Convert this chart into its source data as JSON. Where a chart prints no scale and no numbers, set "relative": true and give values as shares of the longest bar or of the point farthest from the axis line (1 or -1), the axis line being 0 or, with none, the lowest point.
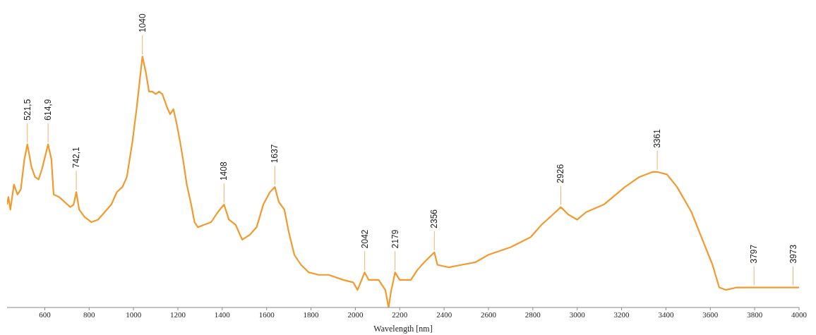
{
  "chart_data": {
    "type": "line",
    "relative": true,
    "xlabel": "Wavelength [nm]",
    "xlim": [
      430,
      4000
    ],
    "xticks": [
      600,
      800,
      1000,
      1200,
      1400,
      1600,
      1800,
      2000,
      2200,
      2400,
      2600,
      2800,
      3000,
      3200,
      3400,
      3600,
      3800,
      4000
    ],
    "grid": false,
    "marker": "none",
    "line_style": "solid",
    "series": [
      {
        "color": "#f39a2e",
        "x": [
          430,
          436,
          445,
          461,
          477,
          492,
          508,
          521.5,
          540,
          556,
          572,
          587,
          614.9,
          630,
          640,
          665,
          690,
          715,
          730,
          742.1,
          755,
          780,
          810,
          840,
          870,
          900,
          925,
          950,
          970,
          995,
          1015,
          1040,
          1055,
          1070,
          1085,
          1100,
          1115,
          1130,
          1150,
          1165,
          1180,
          1195,
          1210,
          1225,
          1240,
          1260,
          1275,
          1290,
          1320,
          1350,
          1380,
          1408,
          1430,
          1460,
          1490,
          1525,
          1555,
          1585,
          1615,
          1637,
          1655,
          1680,
          1700,
          1725,
          1755,
          1790,
          1835,
          1880,
          1945,
          1990,
          2010,
          2042,
          2060,
          2105,
          2135,
          2150,
          2160,
          2179,
          2200,
          2250,
          2280,
          2310,
          2356,
          2370,
          2420,
          2480,
          2540,
          2600,
          2700,
          2790,
          2840,
          2890,
          2926,
          2960,
          3000,
          3040,
          3120,
          3215,
          3280,
          3340,
          3361,
          3405,
          3450,
          3515,
          3560,
          3610,
          3640,
          3670,
          3720,
          3797,
          3875,
          3973,
          4000
        ],
        "values": [
          0.41,
          0.44,
          0.39,
          0.49,
          0.45,
          0.47,
          0.59,
          0.65,
          0.56,
          0.52,
          0.51,
          0.55,
          0.65,
          0.59,
          0.45,
          0.44,
          0.42,
          0.4,
          0.41,
          0.46,
          0.39,
          0.36,
          0.34,
          0.35,
          0.38,
          0.41,
          0.46,
          0.48,
          0.52,
          0.66,
          0.8,
          1,
          0.94,
          0.86,
          0.86,
          0.85,
          0.86,
          0.85,
          0.8,
          0.77,
          0.79,
          0.73,
          0.66,
          0.58,
          0.49,
          0.41,
          0.34,
          0.32,
          0.33,
          0.34,
          0.38,
          0.41,
          0.35,
          0.33,
          0.27,
          0.29,
          0.32,
          0.41,
          0.46,
          0.48,
          0.42,
          0.39,
          0.3,
          0.21,
          0.17,
          0.14,
          0.13,
          0.13,
          0.11,
          0.1,
          0.07,
          0.14,
          0.11,
          0.11,
          0.07,
          0,
          0.06,
          0.14,
          0.11,
          0.11,
          0.15,
          0.18,
          0.22,
          0.17,
          0.16,
          0.17,
          0.18,
          0.21,
          0.24,
          0.28,
          0.33,
          0.37,
          0.4,
          0.37,
          0.35,
          0.38,
          0.41,
          0.48,
          0.52,
          0.54,
          0.54,
          0.53,
          0.48,
          0.38,
          0.28,
          0.17,
          0.08,
          0.07,
          0.08,
          0.08,
          0.08,
          0.08,
          0.08
        ]
      }
    ],
    "annotations": [
      {
        "text": "521,5",
        "x": 521.5,
        "y": 0.65
      },
      {
        "text": "614,9",
        "x": 614.9,
        "y": 0.65
      },
      {
        "text": "742,1",
        "x": 742.1,
        "y": 0.46
      },
      {
        "text": "1040",
        "x": 1040,
        "y": 1
      },
      {
        "text": "1408",
        "x": 1408,
        "y": 0.41
      },
      {
        "text": "1637",
        "x": 1637,
        "y": 0.48
      },
      {
        "text": "2042",
        "x": 2042,
        "y": 0.14
      },
      {
        "text": "2179",
        "x": 2179,
        "y": 0.14
      },
      {
        "text": "2356",
        "x": 2356,
        "y": 0.22
      },
      {
        "text": "2926",
        "x": 2926,
        "y": 0.4
      },
      {
        "text": "3361",
        "x": 3361,
        "y": 0.54
      },
      {
        "text": "3797",
        "x": 3797,
        "y": 0.08
      },
      {
        "text": "3973",
        "x": 3973,
        "y": 0.08
      }
    ]
  }
}
